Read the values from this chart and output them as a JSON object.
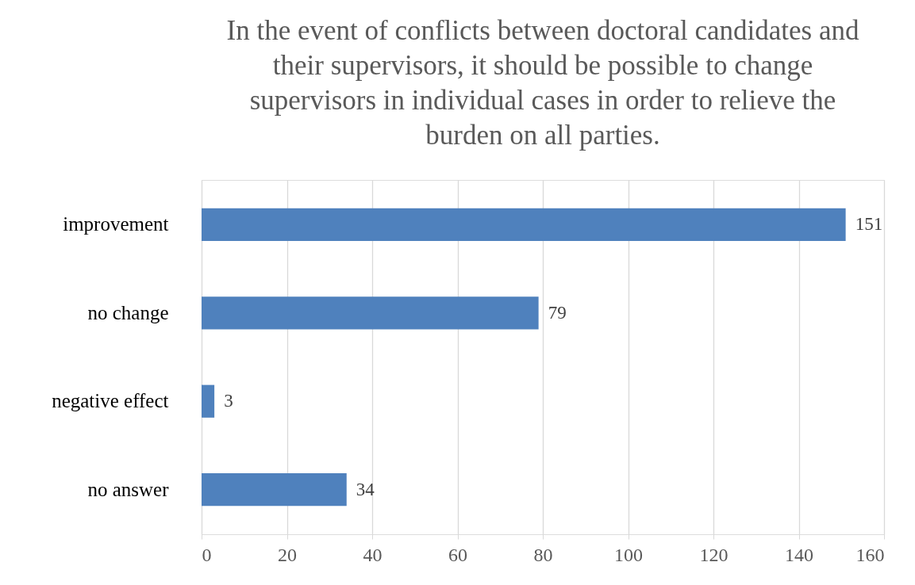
{
  "chart_data": {
    "type": "bar",
    "orientation": "horizontal",
    "title": "In the event of conflicts between doctoral candidates and their supervisors, it should be possible to change supervisors in individual cases in order to relieve the burden on all parties.",
    "categories": [
      "improvement",
      "no change",
      "negative effect",
      "no answer"
    ],
    "values": [
      151,
      79,
      3,
      34
    ],
    "color": "#4f81bd",
    "xlim": [
      0,
      160
    ],
    "xticks": [
      0,
      20,
      40,
      60,
      80,
      100,
      120,
      140,
      160
    ],
    "grid": "x",
    "data_labels": true
  }
}
